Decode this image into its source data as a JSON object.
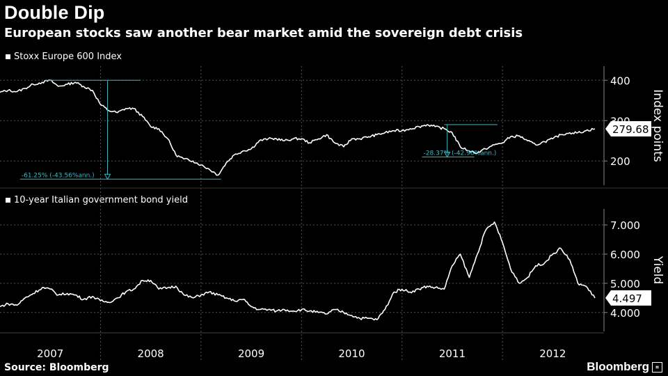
{
  "title": "Double Dip",
  "subtitle": "European stocks saw another bear market amid the sovereign debt crisis",
  "source": "Source: Bloomberg",
  "brand": "Bloomberg",
  "brand_icon": "bloomberg-terminal-icon",
  "colors": {
    "background": "#000000",
    "line": "#ffffff",
    "annotation": "#3fb6c0",
    "grid": "#555555"
  },
  "chart_data": [
    {
      "type": "line",
      "legend": "Stoxx Europe 600 Index",
      "ylabel": "Index points",
      "ylim": [
        140,
        435
      ],
      "yticks": [
        200,
        300,
        400
      ],
      "ytick_labels": [
        "200",
        "300",
        "400"
      ],
      "last_value_label": "279.68",
      "x_years": [
        "2007",
        "2008",
        "2009",
        "2010",
        "2011",
        "2012"
      ],
      "xlim": [
        2007.0,
        2012.92
      ],
      "series": [
        {
          "name": "Stoxx Europe 600 Index",
          "x": [
            2007.0,
            2007.08,
            2007.17,
            2007.25,
            2007.33,
            2007.42,
            2007.5,
            2007.58,
            2007.67,
            2007.75,
            2007.83,
            2007.92,
            2008.0,
            2008.08,
            2008.17,
            2008.25,
            2008.33,
            2008.42,
            2008.5,
            2008.58,
            2008.67,
            2008.75,
            2008.83,
            2008.92,
            2009.0,
            2009.08,
            2009.17,
            2009.25,
            2009.33,
            2009.42,
            2009.5,
            2009.58,
            2009.67,
            2009.75,
            2009.83,
            2009.92,
            2010.0,
            2010.08,
            2010.17,
            2010.25,
            2010.33,
            2010.42,
            2010.5,
            2010.58,
            2010.67,
            2010.75,
            2010.83,
            2010.92,
            2011.0,
            2011.08,
            2011.17,
            2011.25,
            2011.33,
            2011.42,
            2011.5,
            2011.58,
            2011.67,
            2011.75,
            2011.83,
            2011.92,
            2012.0,
            2012.08,
            2012.17,
            2012.25,
            2012.33,
            2012.42,
            2012.5,
            2012.58,
            2012.67,
            2012.75,
            2012.83,
            2012.92
          ],
          "values": [
            370,
            375,
            372,
            380,
            390,
            395,
            400,
            385,
            390,
            395,
            385,
            375,
            340,
            325,
            320,
            330,
            330,
            310,
            285,
            280,
            255,
            215,
            205,
            200,
            190,
            180,
            165,
            195,
            215,
            225,
            230,
            250,
            255,
            255,
            250,
            255,
            255,
            245,
            255,
            265,
            245,
            235,
            255,
            255,
            260,
            265,
            270,
            275,
            275,
            280,
            285,
            290,
            285,
            280,
            270,
            235,
            225,
            220,
            230,
            240,
            245,
            260,
            262,
            250,
            240,
            248,
            255,
            265,
            270,
            270,
            275,
            279.68
          ]
        }
      ],
      "annotations": [
        {
          "label": "-61.25% (-43.56%ann.)",
          "from_x": 2007.4,
          "from_y": 400,
          "to_x": 2009.2,
          "to_y": 155
        },
        {
          "label": "-28.37% (-42.96%ann.)",
          "from_x": 2011.42,
          "from_y": 290,
          "to_x": 2011.68,
          "to_y": 210
        }
      ]
    },
    {
      "type": "line",
      "legend": "10-year Italian government bond yield",
      "ylabel": "Yield",
      "ylim": [
        3.35,
        7.55
      ],
      "yticks": [
        4,
        5,
        6,
        7
      ],
      "ytick_labels": [
        "4.000",
        "5.000",
        "6.000",
        "7.000"
      ],
      "last_value_label": "4.497",
      "x_years": [
        "2007",
        "2008",
        "2009",
        "2010",
        "2011",
        "2012"
      ],
      "xlim": [
        2007.0,
        2012.92
      ],
      "series": [
        {
          "name": "10-year Italian government bond yield",
          "x": [
            2007.0,
            2007.08,
            2007.17,
            2007.25,
            2007.33,
            2007.42,
            2007.5,
            2007.58,
            2007.67,
            2007.75,
            2007.83,
            2007.92,
            2008.0,
            2008.08,
            2008.17,
            2008.25,
            2008.33,
            2008.42,
            2008.5,
            2008.58,
            2008.67,
            2008.75,
            2008.83,
            2008.92,
            2009.0,
            2009.08,
            2009.17,
            2009.25,
            2009.33,
            2009.42,
            2009.5,
            2009.58,
            2009.67,
            2009.75,
            2009.83,
            2009.92,
            2010.0,
            2010.08,
            2010.17,
            2010.25,
            2010.33,
            2010.42,
            2010.5,
            2010.58,
            2010.67,
            2010.75,
            2010.83,
            2010.92,
            2011.0,
            2011.08,
            2011.17,
            2011.25,
            2011.33,
            2011.42,
            2011.5,
            2011.58,
            2011.67,
            2011.75,
            2011.83,
            2011.92,
            2012.0,
            2012.08,
            2012.17,
            2012.25,
            2012.33,
            2012.42,
            2012.5,
            2012.58,
            2012.67,
            2012.75,
            2012.83,
            2012.92
          ],
          "values": [
            4.2,
            4.3,
            4.25,
            4.5,
            4.65,
            4.85,
            4.8,
            4.6,
            4.65,
            4.6,
            4.45,
            4.55,
            4.4,
            4.35,
            4.5,
            4.7,
            4.8,
            5.1,
            5.1,
            4.8,
            4.85,
            4.9,
            4.6,
            4.5,
            4.6,
            4.7,
            4.6,
            4.5,
            4.4,
            4.45,
            4.2,
            4.1,
            4.1,
            4.05,
            4.1,
            4.05,
            4.1,
            4.05,
            4.0,
            3.95,
            4.1,
            4.0,
            3.9,
            3.8,
            3.8,
            3.75,
            4.1,
            4.7,
            4.8,
            4.7,
            4.8,
            4.9,
            4.85,
            4.8,
            5.6,
            6.0,
            5.2,
            6.0,
            6.8,
            7.1,
            6.4,
            5.5,
            5.0,
            5.2,
            5.6,
            5.7,
            6.0,
            6.2,
            5.8,
            5.0,
            4.9,
            4.497
          ]
        }
      ]
    }
  ]
}
